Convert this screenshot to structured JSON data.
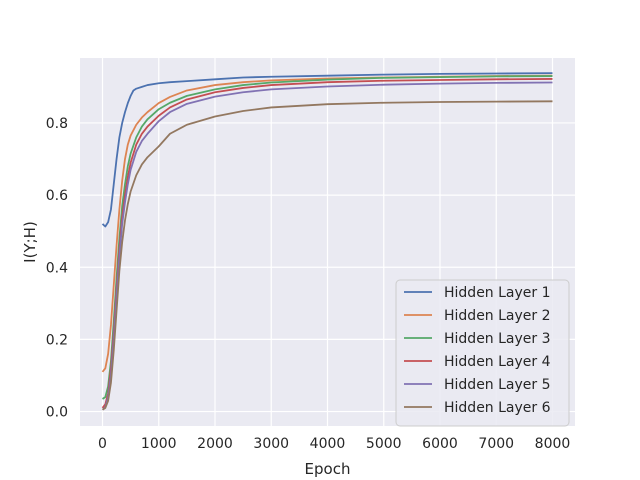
{
  "chart_data": {
    "type": "line",
    "title": "",
    "xlabel": "Epoch",
    "ylabel": "I(Y;H)",
    "xlim": [
      -400,
      8400
    ],
    "ylim": [
      -0.04,
      0.98
    ],
    "xticks": [
      0,
      1000,
      2000,
      3000,
      4000,
      5000,
      6000,
      7000,
      8000
    ],
    "xtick_labels": [
      "0",
      "1000",
      "2000",
      "3000",
      "4000",
      "5000",
      "6000",
      "7000",
      "8000"
    ],
    "yticks": [
      0.0,
      0.2,
      0.4,
      0.6,
      0.8
    ],
    "ytick_labels": [
      "0.0",
      "0.2",
      "0.4",
      "0.6",
      "0.8"
    ],
    "grid": true,
    "background": "#eaeaf2",
    "legend_position": "lower-right",
    "series": [
      {
        "name": "Hidden Layer 1",
        "color": "#4c72b0",
        "x": [
          0,
          50,
          100,
          150,
          200,
          250,
          300,
          350,
          400,
          450,
          500,
          550,
          600,
          700,
          800,
          1000,
          1200,
          1500,
          2000,
          2500,
          3000,
          4000,
          5000,
          6000,
          7000,
          8000
        ],
        "y": [
          0.52,
          0.513,
          0.525,
          0.56,
          0.63,
          0.7,
          0.76,
          0.8,
          0.83,
          0.855,
          0.875,
          0.89,
          0.895,
          0.9,
          0.905,
          0.91,
          0.913,
          0.916,
          0.921,
          0.926,
          0.928,
          0.931,
          0.934,
          0.936,
          0.937,
          0.938
        ]
      },
      {
        "name": "Hidden Layer 2",
        "color": "#dd8452",
        "x": [
          0,
          50,
          100,
          150,
          200,
          250,
          300,
          350,
          400,
          450,
          500,
          600,
          700,
          800,
          1000,
          1200,
          1500,
          2000,
          2500,
          3000,
          4000,
          5000,
          6000,
          7000,
          8000
        ],
        "y": [
          0.11,
          0.12,
          0.16,
          0.24,
          0.35,
          0.46,
          0.56,
          0.64,
          0.7,
          0.74,
          0.765,
          0.795,
          0.815,
          0.83,
          0.855,
          0.872,
          0.89,
          0.905,
          0.913,
          0.918,
          0.923,
          0.926,
          0.928,
          0.93,
          0.931
        ]
      },
      {
        "name": "Hidden Layer 3",
        "color": "#55a868",
        "x": [
          0,
          50,
          100,
          150,
          200,
          250,
          300,
          350,
          400,
          450,
          500,
          600,
          700,
          800,
          1000,
          1200,
          1500,
          2000,
          2500,
          3000,
          4000,
          5000,
          6000,
          7000,
          8000
        ],
        "y": [
          0.035,
          0.04,
          0.07,
          0.14,
          0.25,
          0.37,
          0.48,
          0.57,
          0.63,
          0.68,
          0.715,
          0.76,
          0.79,
          0.81,
          0.838,
          0.856,
          0.875,
          0.893,
          0.905,
          0.912,
          0.92,
          0.925,
          0.927,
          0.929,
          0.93
        ]
      },
      {
        "name": "Hidden Layer 4",
        "color": "#c44e52",
        "x": [
          0,
          50,
          100,
          150,
          200,
          250,
          300,
          350,
          400,
          450,
          500,
          600,
          700,
          800,
          1000,
          1200,
          1500,
          2000,
          2500,
          3000,
          4000,
          5000,
          6000,
          7000,
          8000
        ],
        "y": [
          0.01,
          0.02,
          0.05,
          0.12,
          0.22,
          0.34,
          0.45,
          0.54,
          0.6,
          0.65,
          0.69,
          0.74,
          0.77,
          0.79,
          0.82,
          0.843,
          0.865,
          0.885,
          0.897,
          0.905,
          0.913,
          0.917,
          0.919,
          0.921,
          0.922
        ]
      },
      {
        "name": "Hidden Layer 5",
        "color": "#8172b3",
        "x": [
          0,
          50,
          100,
          150,
          200,
          250,
          300,
          350,
          400,
          450,
          500,
          600,
          700,
          800,
          1000,
          1200,
          1500,
          2000,
          2500,
          3000,
          4000,
          5000,
          6000,
          7000,
          8000
        ],
        "y": [
          0.005,
          0.012,
          0.04,
          0.1,
          0.2,
          0.32,
          0.43,
          0.52,
          0.58,
          0.63,
          0.67,
          0.72,
          0.75,
          0.77,
          0.805,
          0.83,
          0.853,
          0.873,
          0.885,
          0.893,
          0.901,
          0.906,
          0.909,
          0.911,
          0.912
        ]
      },
      {
        "name": "Hidden Layer 6",
        "color": "#937860",
        "x": [
          0,
          50,
          100,
          150,
          200,
          250,
          300,
          350,
          400,
          450,
          500,
          600,
          700,
          800,
          1000,
          1200,
          1500,
          2000,
          2500,
          3000,
          4000,
          5000,
          6000,
          7000,
          8000
        ],
        "y": [
          0.005,
          0.01,
          0.03,
          0.08,
          0.17,
          0.28,
          0.39,
          0.47,
          0.53,
          0.575,
          0.61,
          0.655,
          0.685,
          0.705,
          0.735,
          0.77,
          0.795,
          0.818,
          0.833,
          0.843,
          0.852,
          0.856,
          0.858,
          0.859,
          0.86
        ]
      }
    ]
  }
}
